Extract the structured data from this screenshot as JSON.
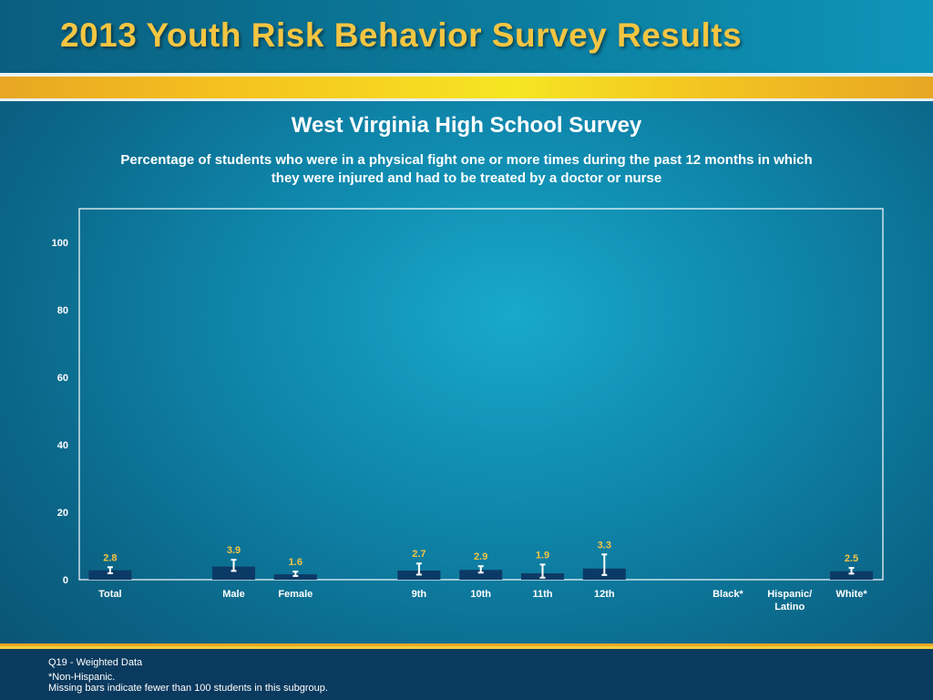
{
  "header": {
    "title": "2013 Youth Risk Behavior Survey Results"
  },
  "slide": {
    "title": "West Virginia High School Survey",
    "subtitle_line1": "Percentage of students who were in a physical fight one or more times during the past 12 months in which",
    "subtitle_line2": "they were injured and had to be treated by a doctor or nurse"
  },
  "footer": {
    "note1": "Q19 - Weighted Data",
    "note2": "*Non-Hispanic.",
    "note3": "Missing bars indicate fewer than 100 students in this subgroup."
  },
  "colors": {
    "bar": "#0c3a66",
    "gold": "#f4c542",
    "text": "#ffffff"
  },
  "chart_data": {
    "type": "bar",
    "title": "",
    "xlabel": "",
    "ylabel": "",
    "ylim": [
      0,
      110
    ],
    "yticks": [
      0,
      20,
      40,
      60,
      80,
      100
    ],
    "grid": false,
    "categories": [
      {
        "label": "Total",
        "value": 2.8,
        "err_low": 1.9,
        "err_high": 3.7
      },
      {
        "label": "",
        "value": null,
        "err_low": null,
        "err_high": null
      },
      {
        "label": "Male",
        "value": 3.9,
        "err_low": 2.6,
        "err_high": 5.9
      },
      {
        "label": "Female",
        "value": 1.6,
        "err_low": 1.1,
        "err_high": 2.4
      },
      {
        "label": "",
        "value": null,
        "err_low": null,
        "err_high": null
      },
      {
        "label": "9th",
        "value": 2.7,
        "err_low": 1.5,
        "err_high": 4.8
      },
      {
        "label": "10th",
        "value": 2.9,
        "err_low": 2.1,
        "err_high": 4.0
      },
      {
        "label": "11th",
        "value": 1.9,
        "err_low": 0.6,
        "err_high": 4.5
      },
      {
        "label": "12th",
        "value": 3.3,
        "err_low": 1.4,
        "err_high": 7.5
      },
      {
        "label": "",
        "value": null,
        "err_low": null,
        "err_high": null
      },
      {
        "label": "Black*",
        "value": null,
        "err_low": null,
        "err_high": null
      },
      {
        "label": "Hispanic/\nLatino",
        "value": null,
        "err_low": null,
        "err_high": null
      },
      {
        "label": "White*",
        "value": 2.5,
        "err_low": 1.8,
        "err_high": 3.5
      }
    ]
  }
}
